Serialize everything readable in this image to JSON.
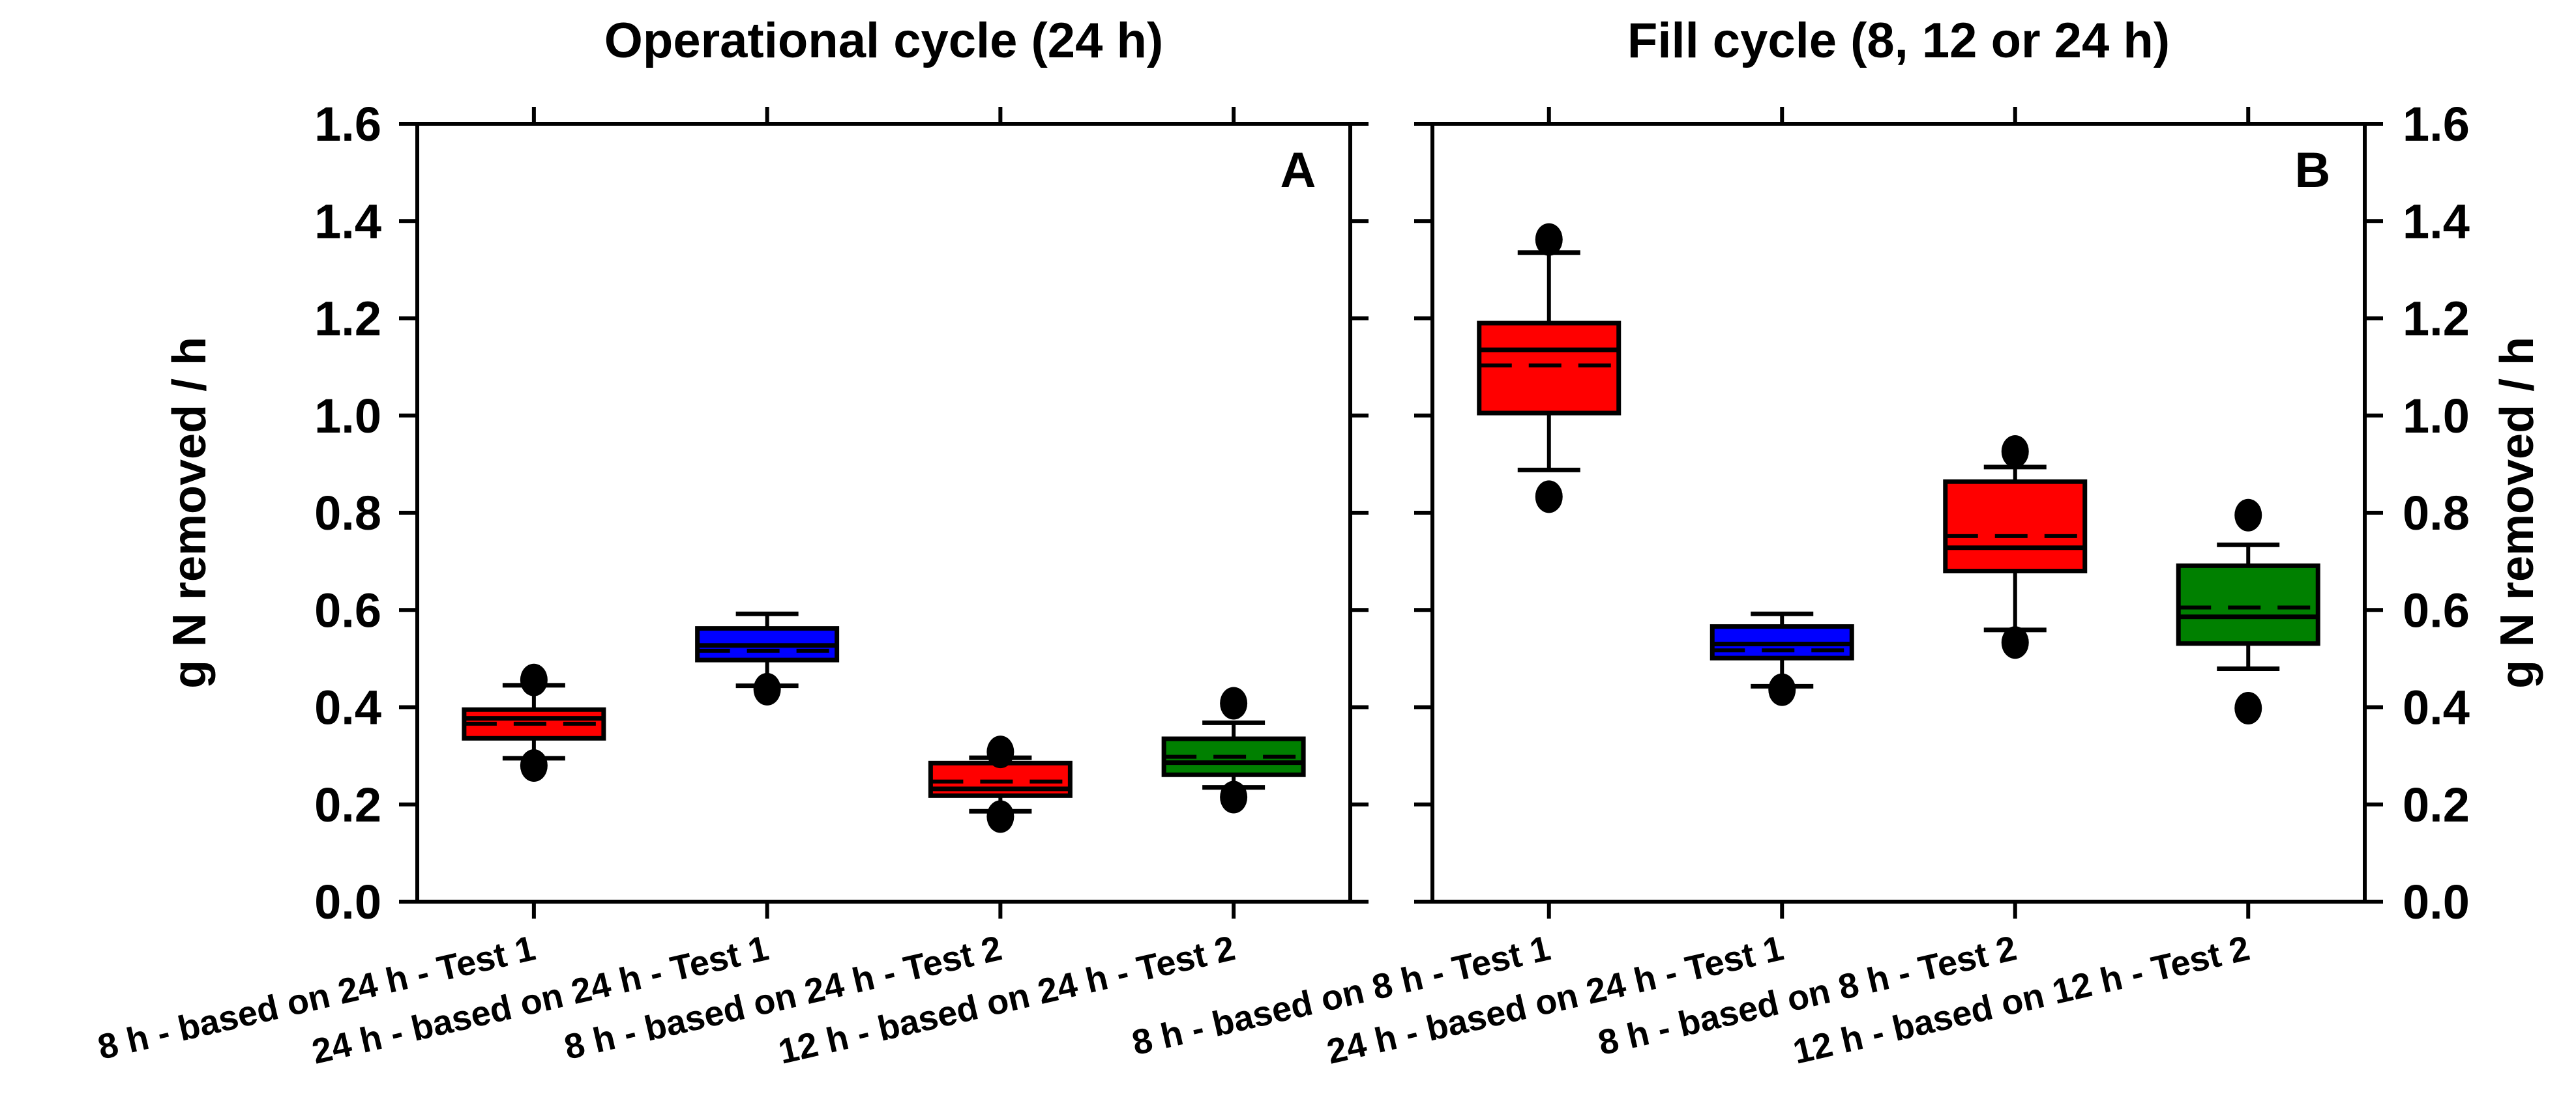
{
  "chart_data": {
    "type": "box",
    "background_color": "#FFFFFF",
    "frame_color": "#000000",
    "y_axis": {
      "label": "g N removed / h",
      "min": 0.0,
      "max": 1.6,
      "tick_step": 0.2,
      "tick_labels": [
        "0.0",
        "0.2",
        "0.4",
        "0.6",
        "0.8",
        "1.0",
        "1.2",
        "1.4",
        "1.6"
      ],
      "grid": false
    },
    "legend": "none",
    "colors": {
      "red": "#FF0000",
      "blue": "#0000FF",
      "green": "#008000",
      "outlier": "#000000"
    },
    "panels": [
      {
        "id": "A",
        "title": "Operational cycle (24 h)",
        "corner_label": "A",
        "y_tick_labels_side": "left",
        "y_axis_title_side": "left",
        "categories": [
          "8 h - based on 24 h - Test 1",
          "24 h - based on 24 h - Test 1",
          "8 h - based on 24 h - Test 2",
          "12 h - based on 24 h - Test 2"
        ],
        "boxes": [
          {
            "category": "8 h - based on 24 h - Test 1",
            "color": "#FF0000",
            "whisker_low": 0.295,
            "q1": 0.336,
            "median": 0.377,
            "mean": 0.366,
            "q3": 0.395,
            "whisker_high": 0.445,
            "outliers": [
              0.28,
              0.456
            ]
          },
          {
            "category": "24 h - based on 24 h - Test 1",
            "color": "#0000FF",
            "whisker_low": 0.444,
            "q1": 0.497,
            "median": 0.527,
            "mean": 0.516,
            "q3": 0.562,
            "whisker_high": 0.592,
            "outliers": [
              0.437
            ]
          },
          {
            "category": "8 h - based on 24 h - Test 2",
            "color": "#FF0000",
            "whisker_low": 0.186,
            "q1": 0.218,
            "median": 0.232,
            "mean": 0.247,
            "q3": 0.285,
            "whisker_high": 0.296,
            "outliers": [
              0.175,
              0.308
            ]
          },
          {
            "category": "12 h - based on 24 h - Test 2",
            "color": "#008000",
            "whisker_low": 0.235,
            "q1": 0.261,
            "median": 0.286,
            "mean": 0.298,
            "q3": 0.335,
            "whisker_high": 0.368,
            "outliers": [
              0.215,
              0.408
            ]
          }
        ]
      },
      {
        "id": "B",
        "title": "Fill cycle (8, 12 or 24 h)",
        "corner_label": "B",
        "y_tick_labels_side": "right",
        "y_axis_title_side": "right",
        "categories": [
          "8 h - based on 8 h - Test 1",
          "24 h - based on 24 h - Test 1",
          "8 h - based on 8 h - Test 2",
          "12 h - based on 12 h - Test 2"
        ],
        "boxes": [
          {
            "category": "8 h - based on 8 h - Test 1",
            "color": "#FF0000",
            "whisker_low": 0.888,
            "q1": 1.005,
            "median": 1.135,
            "mean": 1.103,
            "q3": 1.19,
            "whisker_high": 1.335,
            "outliers": [
              0.833,
              1.362
            ]
          },
          {
            "category": "24 h - based on 24 h - Test 1",
            "color": "#0000FF",
            "whisker_low": 0.443,
            "q1": 0.501,
            "median": 0.53,
            "mean": 0.517,
            "q3": 0.566,
            "whisker_high": 0.592,
            "outliers": [
              0.436
            ]
          },
          {
            "category": "8 h - based on 8 h - Test 2",
            "color": "#FF0000",
            "whisker_low": 0.559,
            "q1": 0.68,
            "median": 0.728,
            "mean": 0.752,
            "q3": 0.864,
            "whisker_high": 0.894,
            "outliers": [
              0.533,
              0.926
            ]
          },
          {
            "category": "12 h - based on 12 h - Test 2",
            "color": "#008000",
            "whisker_low": 0.479,
            "q1": 0.531,
            "median": 0.586,
            "mean": 0.605,
            "q3": 0.691,
            "whisker_high": 0.734,
            "outliers": [
              0.398,
              0.795
            ]
          }
        ]
      }
    ],
    "style_notes": {
      "median_line": "solid black",
      "mean_line": "dashed black",
      "outlier_marker": "filled black circle",
      "x_label_rotation_deg": -13
    }
  }
}
